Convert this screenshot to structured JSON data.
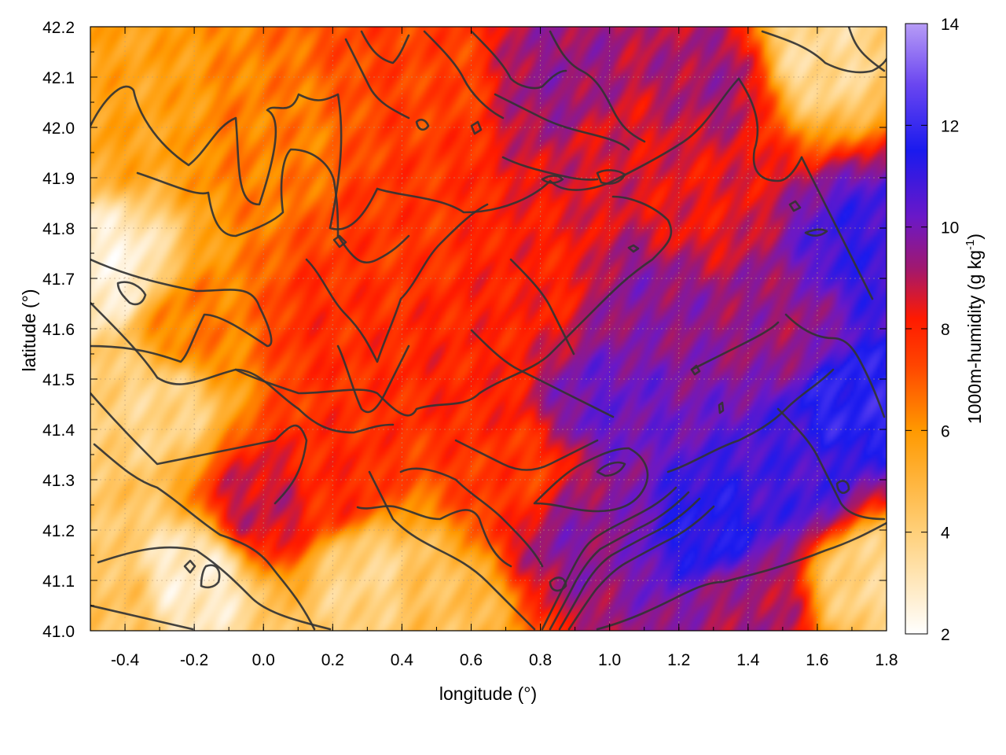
{
  "chart_data": {
    "type": "heatmap",
    "title": "",
    "xlabel": "longitude (°)",
    "ylabel": "latitude (°)",
    "colorbar_label_main": "1000m-humidity (g kg",
    "colorbar_label_exp": "-1",
    "colorbar_label_close": ")",
    "xlim": [
      -0.5,
      1.8
    ],
    "ylim": [
      41.0,
      42.2
    ],
    "clim": [
      2,
      14
    ],
    "x_ticks": [
      "-0.4",
      "-0.2",
      "0.0",
      "0.2",
      "0.4",
      "0.6",
      "0.8",
      "1.0",
      "1.2",
      "1.4",
      "1.6",
      "1.8"
    ],
    "x_tick_values": [
      -0.4,
      -0.2,
      0.0,
      0.2,
      0.4,
      0.6,
      0.8,
      1.0,
      1.2,
      1.4,
      1.6,
      1.8
    ],
    "y_ticks": [
      "41.0",
      "41.1",
      "41.2",
      "41.3",
      "41.4",
      "41.5",
      "41.6",
      "41.7",
      "41.8",
      "41.9",
      "42.0",
      "42.1",
      "42.2"
    ],
    "y_tick_values": [
      41.0,
      41.1,
      41.2,
      41.3,
      41.4,
      41.5,
      41.6,
      41.7,
      41.8,
      41.9,
      42.0,
      42.1,
      42.2
    ],
    "colorbar_ticks": [
      "2",
      "4",
      "6",
      "8",
      "10",
      "12",
      "14"
    ],
    "colorbar_tick_values": [
      2,
      4,
      6,
      8,
      10,
      12,
      14
    ],
    "colormap": [
      {
        "v": 2,
        "color": "#ffffff"
      },
      {
        "v": 4,
        "color": "#ffd07a"
      },
      {
        "v": 6,
        "color": "#ff9900"
      },
      {
        "v": 7.3,
        "color": "#ff4400"
      },
      {
        "v": 8.2,
        "color": "#ff1a00"
      },
      {
        "v": 9.2,
        "color": "#a01870"
      },
      {
        "v": 10.2,
        "color": "#6a18c8"
      },
      {
        "v": 11.5,
        "color": "#1a1aee"
      },
      {
        "v": 12.8,
        "color": "#6a46f0"
      },
      {
        "v": 14,
        "color": "#b79cf6"
      }
    ],
    "field_samples": [
      {
        "lon": -0.45,
        "lat": 41.05,
        "v": 4.5
      },
      {
        "lon": -0.2,
        "lat": 41.1,
        "v": 2.8
      },
      {
        "lon": -0.3,
        "lat": 41.45,
        "v": 3.8
      },
      {
        "lon": -0.45,
        "lat": 41.72,
        "v": 2.6
      },
      {
        "lon": -0.4,
        "lat": 42.0,
        "v": 5.6
      },
      {
        "lon": 0.0,
        "lat": 41.95,
        "v": 6.4
      },
      {
        "lon": 0.0,
        "lat": 41.25,
        "v": 8.8
      },
      {
        "lon": 0.3,
        "lat": 41.1,
        "v": 3.8
      },
      {
        "lon": 0.5,
        "lat": 41.05,
        "v": 4.6
      },
      {
        "lon": 0.2,
        "lat": 41.6,
        "v": 7.8
      },
      {
        "lon": 0.4,
        "lat": 41.8,
        "v": 7.6
      },
      {
        "lon": 0.5,
        "lat": 42.1,
        "v": 7.4
      },
      {
        "lon": 0.6,
        "lat": 41.55,
        "v": 8.0
      },
      {
        "lon": 0.8,
        "lat": 41.7,
        "v": 8.1
      },
      {
        "lon": 0.85,
        "lat": 42.1,
        "v": 9.4
      },
      {
        "lon": 0.9,
        "lat": 41.2,
        "v": 9.6
      },
      {
        "lon": 1.0,
        "lat": 41.45,
        "v": 10.2
      },
      {
        "lon": 1.1,
        "lat": 41.65,
        "v": 9.6
      },
      {
        "lon": 1.05,
        "lat": 41.95,
        "v": 8.6
      },
      {
        "lon": 1.3,
        "lat": 41.2,
        "v": 11.4
      },
      {
        "lon": 1.4,
        "lat": 41.05,
        "v": 9.2
      },
      {
        "lon": 1.25,
        "lat": 41.85,
        "v": 8.4
      },
      {
        "lon": 1.3,
        "lat": 42.1,
        "v": 9.2
      },
      {
        "lon": 1.6,
        "lat": 42.15,
        "v": 3.6
      },
      {
        "lon": 1.7,
        "lat": 41.45,
        "v": 11.8
      },
      {
        "lon": 1.75,
        "lat": 41.75,
        "v": 11.0
      },
      {
        "lon": 1.75,
        "lat": 41.1,
        "v": 3.8
      },
      {
        "lon": 1.55,
        "lat": 41.3,
        "v": 10.8
      },
      {
        "lon": 1.5,
        "lat": 41.6,
        "v": 9.4
      },
      {
        "lon": 0.75,
        "lat": 41.3,
        "v": 7.6
      },
      {
        "lon": 0.2,
        "lat": 41.3,
        "v": 7.9
      },
      {
        "lon": -0.2,
        "lat": 41.6,
        "v": 6.4
      }
    ],
    "grid": true,
    "contour_color": "#333333"
  }
}
